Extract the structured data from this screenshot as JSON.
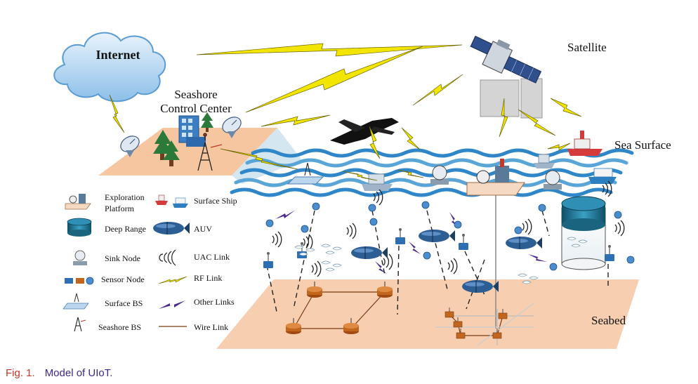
{
  "labels": {
    "internet": "Internet",
    "satellite": "Satellite",
    "seashore_line1": "Seashore",
    "seashore_line2": "Control Center",
    "sea_surface": "Sea Surface",
    "seabed": "Seabed"
  },
  "legend": {
    "exploration_line1": "Exploration",
    "exploration_line2": "Platform",
    "surface_ship": "Surface Ship",
    "deep_range": "Deep Range",
    "auv": "AUV",
    "sink_node": "Sink Node",
    "uac_link": "UAC Link",
    "sensor_node": "Sensor Node",
    "rf_link": "RF Link",
    "surface_bs": "Surface BS",
    "other_links": "Other Links",
    "seashore_bs": "Seashore BS",
    "wire_link": "Wire Link"
  },
  "caption": {
    "number": "Fig. 1.",
    "text": "Model of UIoT."
  },
  "colors": {
    "seabed": "#f7cfb0",
    "sea_wave": "#2f86c8",
    "rf_link": "#f2e600",
    "other_link": "#4b2a8c",
    "cloud": "#9fcbef",
    "deep_range": "#1f6a86",
    "caption_text": "#3c2a86"
  }
}
